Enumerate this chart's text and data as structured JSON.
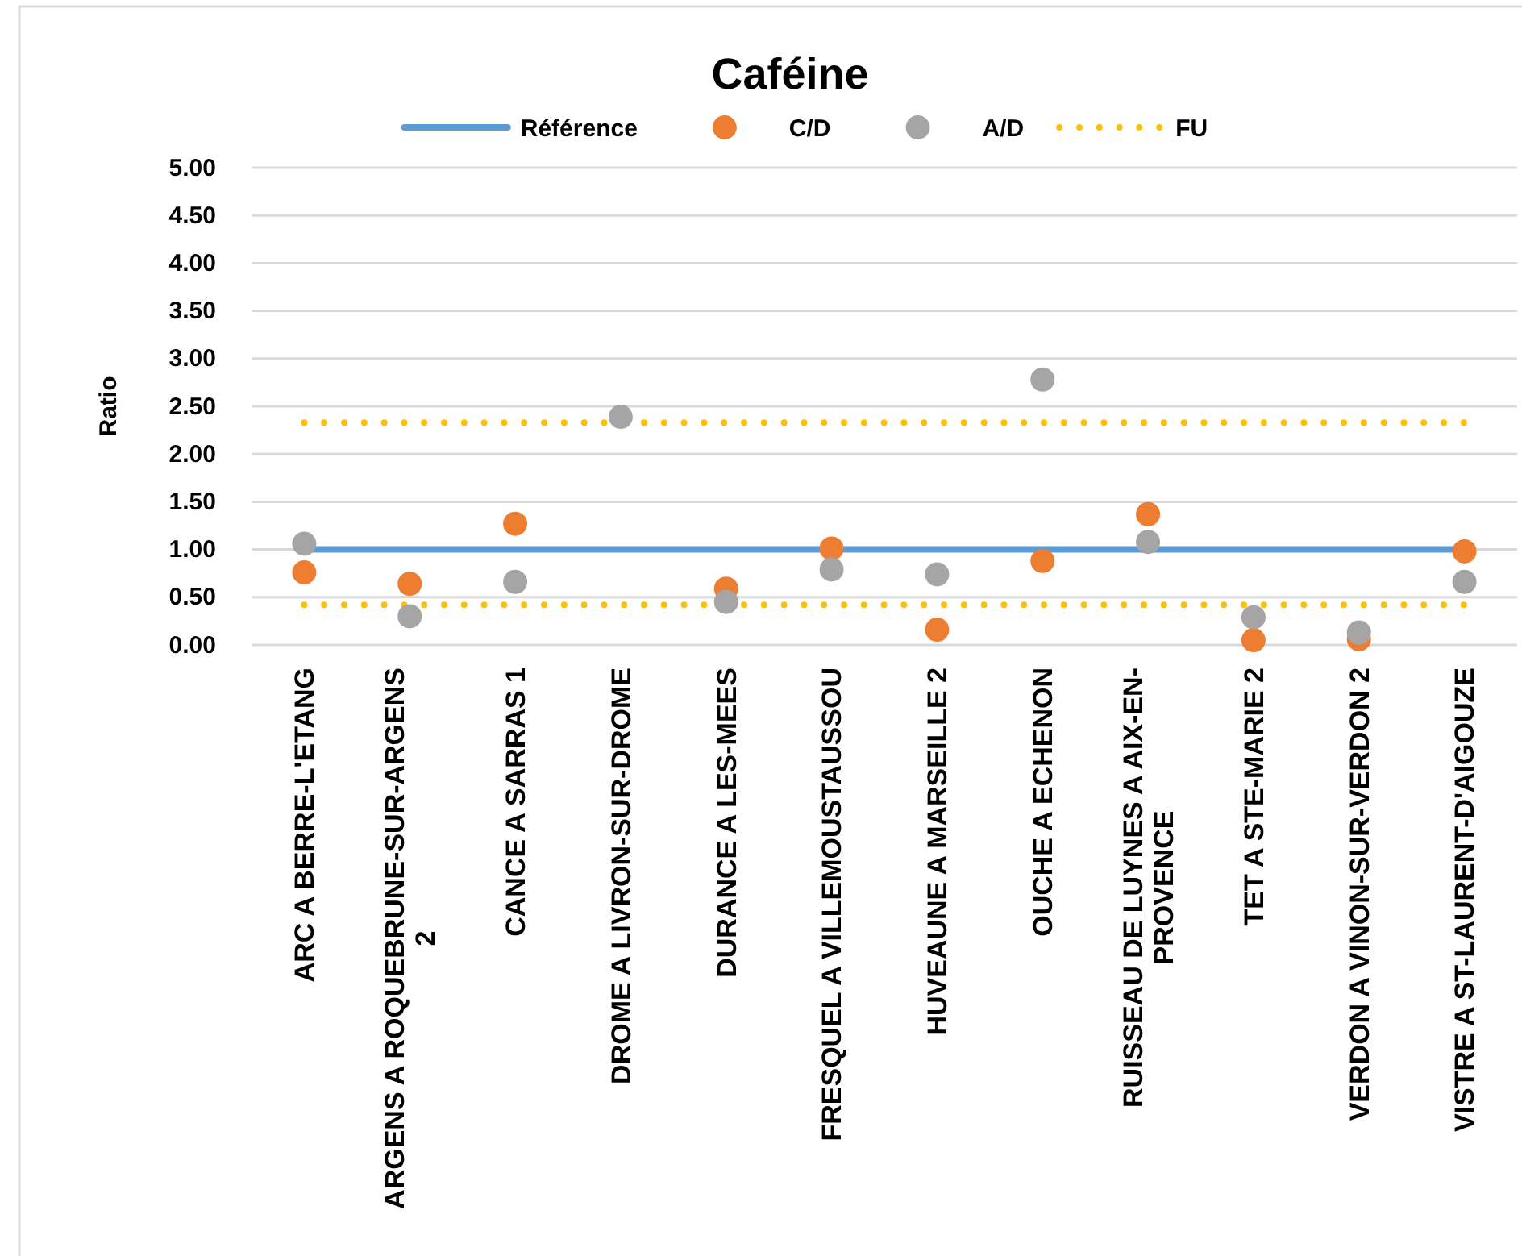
{
  "chart_data": {
    "type": "scatter",
    "title": "Caféine",
    "ylabel": "Ratio",
    "categories": [
      "ARC A BERRE-L'ETANG",
      "ARGENS A ROQUEBRUNE-SUR-ARGENS 2",
      "CANCE A SARRAS 1",
      "DROME A LIVRON-SUR-DROME",
      "DURANCE A LES-MEES",
      "FRESQUEL A VILLEMOUSTAUSSOU",
      "HUVEAUNE A MARSEILLE 2",
      "OUCHE A ECHENON",
      "RUISSEAU DE LUYNES A AIX-EN-PROVENCE",
      "TET A STE-MARIE 2",
      "VERDON A VINON-SUR-VERDON 2",
      "VISTRE A ST-LAURENT-D'AIGOUZE"
    ],
    "series": [
      {
        "name": "Référence",
        "type": "line",
        "color": "#5b9bd5",
        "line_style": "solid",
        "marker": "none",
        "values": [
          1,
          1,
          1,
          1,
          1,
          1,
          1,
          1,
          1,
          1,
          1,
          1
        ]
      },
      {
        "name": "C/D",
        "color": "#ed7d31",
        "marker": "circle",
        "values": [
          0.76,
          0.64,
          1.27,
          null,
          0.59,
          1.01,
          0.16,
          0.88,
          1.37,
          0.05,
          0.06,
          0.98
        ]
      },
      {
        "name": "A/D",
        "color": "#a5a5a5",
        "marker": "circle",
        "values": [
          1.06,
          0.3,
          0.66,
          2.39,
          0.45,
          0.79,
          0.74,
          2.78,
          1.08,
          0.29,
          0.13,
          0.66
        ]
      },
      {
        "name": "FU",
        "type": "line",
        "color": "#ffc000",
        "line_style": "dotted",
        "marker": "none",
        "values": [
          2.33,
          2.33,
          2.33,
          2.33,
          2.33,
          2.33,
          2.33,
          2.33,
          2.33,
          2.33,
          2.33,
          2.33
        ]
      },
      {
        "type": "line",
        "color": "#ffc000",
        "line_style": "dotted",
        "marker": "none",
        "values": [
          0.42,
          0.42,
          0.42,
          0.42,
          0.42,
          0.42,
          0.42,
          0.42,
          0.42,
          0.42,
          0.42,
          0.42
        ]
      }
    ],
    "ylim": [
      0,
      5
    ],
    "yticks": [
      {
        "value": 0,
        "label": "0.00"
      },
      {
        "value": 0.5,
        "label": "0.50"
      },
      {
        "value": 1,
        "label": "1.00"
      },
      {
        "value": 1.5,
        "label": "1.50"
      },
      {
        "value": 2,
        "label": "2.00"
      },
      {
        "value": 2.5,
        "label": "2.50"
      },
      {
        "value": 3,
        "label": "3.00"
      },
      {
        "value": 3.5,
        "label": "3.50"
      },
      {
        "value": 4,
        "label": "4.00"
      },
      {
        "value": 4.5,
        "label": "4.50"
      },
      {
        "value": 5,
        "label": "5.00"
      }
    ],
    "grid": "y",
    "legend": "top"
  }
}
